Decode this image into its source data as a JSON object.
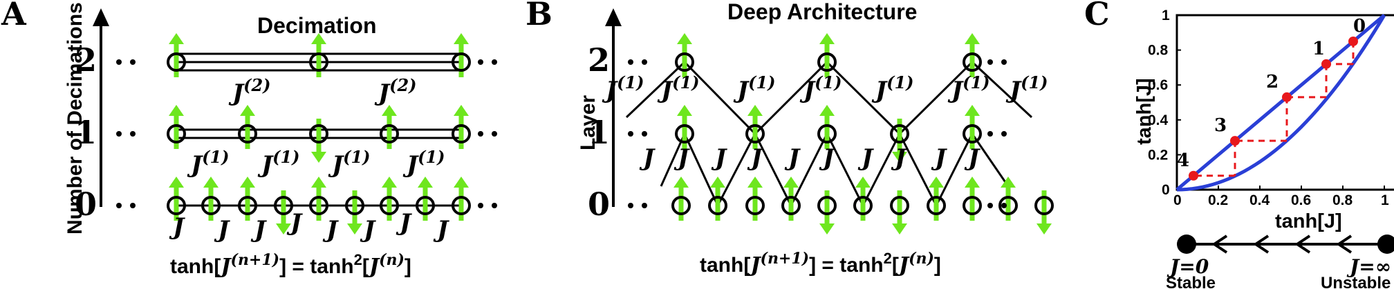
{
  "panelA": {
    "letter": "A",
    "title": "Decimation",
    "axis_title": "Number of Decimations",
    "levels": [
      "0",
      "1",
      "2"
    ],
    "row0_couplings": [
      "J",
      "J",
      "J",
      "J",
      "J",
      "J",
      "J",
      "J"
    ],
    "row1_couplings": [
      "J",
      "J",
      "J",
      "J"
    ],
    "row1_sup": "(1)",
    "row2_couplings": [
      "J",
      "J"
    ],
    "row2_sup": "(2)",
    "row0_spins": [
      "up",
      "up",
      "up",
      "down",
      "up",
      "down",
      "up",
      "up",
      "up"
    ],
    "row1_spins": [
      "up",
      "up",
      "down",
      "up",
      "up"
    ],
    "row2_spins": [
      "up",
      "up",
      "up"
    ],
    "dots": "• •",
    "formula": {
      "lhs_fn": "tanh[",
      "lhs_var": "J",
      "lhs_sup": "(n+1)",
      "close": "]",
      "eq": " = ",
      "rhs_fn": "tanh",
      "rhs_pow": "2",
      "rhs_open": "[",
      "rhs_var": "J",
      "rhs_sup": "(n)"
    }
  },
  "panelB": {
    "letter": "B",
    "title": "Deep Architecture",
    "axis_title": "Layer",
    "levels": [
      "0",
      "1",
      "2"
    ],
    "row0_spins": [
      "up",
      "up",
      "up",
      "up",
      "down",
      "up",
      "down",
      "up",
      "up",
      "up",
      "down"
    ],
    "row1_spins": [
      "up",
      "up",
      "up",
      "down",
      "up"
    ],
    "row2_spins": [
      "up",
      "up",
      "up"
    ],
    "row1_couplings": [
      "J",
      "J",
      "J",
      "J",
      "J",
      "J",
      "J",
      "J",
      "J",
      "J"
    ],
    "row2_couplings": [
      "J",
      "J",
      "J",
      "J",
      "J",
      "J",
      "J",
      "J"
    ],
    "row2_sup": "(1)",
    "dots": "• •",
    "formula": {
      "lhs_fn": "tanh[",
      "lhs_var": "J",
      "lhs_sup": "(n+1)",
      "close": "]",
      "eq": " = ",
      "rhs_fn": "tanh",
      "rhs_pow": "2",
      "rhs_open": "[",
      "rhs_var": "J",
      "rhs_sup": "(n)"
    }
  },
  "panelC": {
    "letter": "C",
    "ylabel": "tanh[J]",
    "xlabel": "tanh[J]",
    "ticks": [
      "0",
      "0.2",
      "0.4",
      "0.6",
      "0.8",
      "1"
    ],
    "step_labels": [
      "0",
      "1",
      "2",
      "3",
      "4"
    ],
    "fixed_points": {
      "stable": "J=0",
      "unstable": "J=∞",
      "stable_word": "Stable",
      "unstable_word": "Unstable"
    },
    "colors": {
      "curve": "#2a3fd6",
      "points": "#e8181c",
      "steps": "#e8181c"
    }
  },
  "colors": {
    "spin": "#6ee61e",
    "black": "#000000"
  },
  "chart_data": {
    "type": "line",
    "xlabel": "tanh[J]",
    "ylabel": "tanh[J]",
    "xlim": [
      0,
      1
    ],
    "ylim": [
      0,
      1
    ],
    "series": [
      {
        "x": [
          0,
          0.2,
          0.4,
          0.6,
          0.8,
          1
        ],
        "y": [
          0,
          0.2,
          0.4,
          0.6,
          0.8,
          1
        ]
      },
      {
        "x": [
          0,
          0.2,
          0.4,
          0.6,
          0.8,
          1
        ],
        "y": [
          0,
          0.04,
          0.16,
          0.36,
          0.64,
          1
        ]
      }
    ],
    "points": [
      {
        "label": "0",
        "x": 0.85,
        "y": 0.85
      },
      {
        "label": "1",
        "x": 0.72,
        "y": 0.72
      },
      {
        "label": "2",
        "x": 0.53,
        "y": 0.53
      },
      {
        "label": "3",
        "x": 0.28,
        "y": 0.28
      },
      {
        "label": "4",
        "x": 0.08,
        "y": 0.08
      }
    ]
  }
}
